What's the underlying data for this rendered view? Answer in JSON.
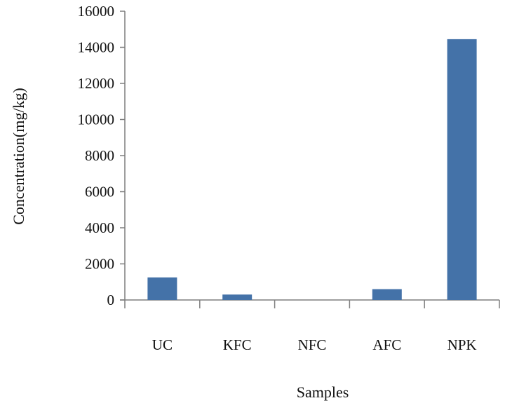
{
  "chart_data": {
    "type": "bar",
    "categories": [
      "UC",
      "KFC",
      "NFC",
      "AFC",
      "NPK"
    ],
    "values": [
      1250,
      300,
      0,
      600,
      14450
    ],
    "xlabel": "Samples",
    "ylabel": "Concentration(mg/kg)",
    "ylim": [
      0,
      16000
    ],
    "yticks": [
      0,
      2000,
      4000,
      6000,
      8000,
      10000,
      12000,
      14000,
      16000
    ],
    "grid": false,
    "bar_color": "#4472A8"
  }
}
